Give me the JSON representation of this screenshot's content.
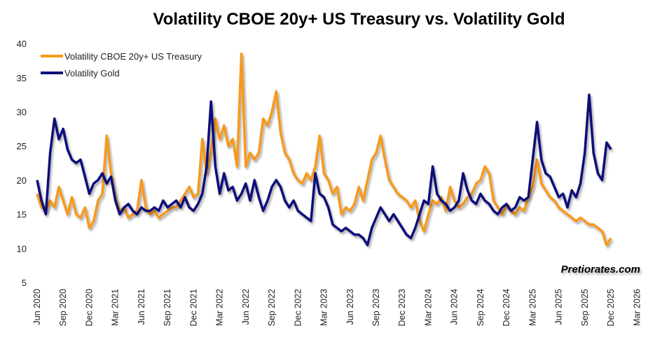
{
  "chart_data": {
    "type": "line",
    "title": "Volatility CBOE 20y+ US Treasury vs. Volatility Gold",
    "xlabel": "",
    "ylabel": "",
    "ylim": [
      5,
      40
    ],
    "yticks": [
      5,
      10,
      15,
      20,
      25,
      30,
      35,
      40
    ],
    "xticks": [
      "Jun 2020",
      "Sep 2020",
      "Dec 2020",
      "Mar 2021",
      "Jun 2021",
      "Sep 2021",
      "Dec 2021",
      "Mar 2022",
      "Jun 2022",
      "Sep 2022",
      "Dec 2022",
      "Mar 2023",
      "Jun 2023",
      "Sep 2023",
      "Dec 2023",
      "Mar 2024",
      "Jun 2024",
      "Sep 2024",
      "Dec 2024",
      "Mar 2025",
      "Jun 2025",
      "Sep 2025",
      "Dec 2025",
      "Mar 2026"
    ],
    "x_start": "Jun 2020",
    "x_step_months": 0.5,
    "grid": false,
    "legend_position": "top-left",
    "series": [
      {
        "name": "Volatility CBOE 20y+ US Treasury",
        "color": "#F7991C",
        "values": [
          18,
          16,
          15.5,
          17,
          16,
          19,
          17,
          15,
          17.5,
          15,
          14.5,
          16,
          13,
          14,
          17,
          18,
          26.5,
          21,
          17.5,
          15.5,
          16,
          14.5,
          15,
          15.5,
          20,
          16,
          15,
          15.5,
          14.5,
          15,
          15.5,
          16,
          16,
          17,
          18,
          19,
          17.5,
          18,
          26,
          21,
          24,
          29,
          26,
          28,
          25,
          26,
          22,
          38.5,
          22,
          24,
          23,
          24,
          29,
          28,
          30,
          33,
          27,
          24,
          23,
          21,
          20,
          19.5,
          21,
          20,
          22,
          26.5,
          21,
          20,
          18,
          19,
          15,
          16,
          15.5,
          16.5,
          19,
          17,
          20,
          23,
          24,
          26.5,
          23,
          20,
          19,
          18,
          17.5,
          17,
          16,
          17,
          14,
          12.5,
          15,
          17,
          16.5,
          17.5,
          15.5,
          19,
          17,
          16,
          16.5,
          17.5,
          18,
          19.5,
          20,
          22,
          21,
          17,
          16,
          15,
          16.5,
          15.5,
          15,
          16,
          15.5,
          17.5,
          19,
          23,
          19.5,
          18.5,
          17.5,
          17,
          16,
          15.5,
          15,
          14.5,
          14,
          14.5,
          14,
          13.5,
          13.5,
          13,
          12.5,
          10.5,
          11.5
        ]
      },
      {
        "name": "Volatility Gold",
        "color": "#0D0F7A",
        "values": [
          20,
          17,
          15,
          24,
          29,
          26,
          27.5,
          24.5,
          23,
          22.5,
          23,
          20.5,
          18,
          19.5,
          20,
          21,
          19.5,
          20.5,
          17,
          15,
          16,
          16.5,
          15.5,
          15,
          16,
          15.5,
          15.5,
          16,
          15.5,
          17,
          16,
          16.5,
          17,
          16,
          17.5,
          16,
          15.5,
          16.5,
          18,
          22,
          31.5,
          22,
          18,
          21,
          18.5,
          19,
          17,
          18,
          19.5,
          17,
          20,
          17.5,
          15.5,
          17,
          19,
          20,
          19,
          17,
          16,
          17,
          15.5,
          15,
          14.5,
          14,
          21,
          18,
          17.5,
          16,
          13.5,
          13,
          12.5,
          13,
          12.5,
          12,
          12,
          11.5,
          10.5,
          13,
          14.5,
          16,
          15,
          14,
          15,
          14,
          13,
          12,
          11.5,
          13,
          15,
          17,
          16.5,
          22,
          18,
          17,
          16.5,
          15.5,
          16,
          17,
          21,
          18.5,
          17,
          16.5,
          18,
          17,
          16.5,
          15.5,
          15,
          16,
          16.5,
          15.5,
          16,
          17.5,
          17,
          17.5,
          23,
          28.5,
          23,
          21,
          20.5,
          19,
          17.5,
          18,
          16,
          18.5,
          17.5,
          19.5,
          24,
          32.5,
          24,
          21,
          20,
          25.5,
          24.5
        ]
      }
    ]
  },
  "watermark": "Pretiorates.com"
}
